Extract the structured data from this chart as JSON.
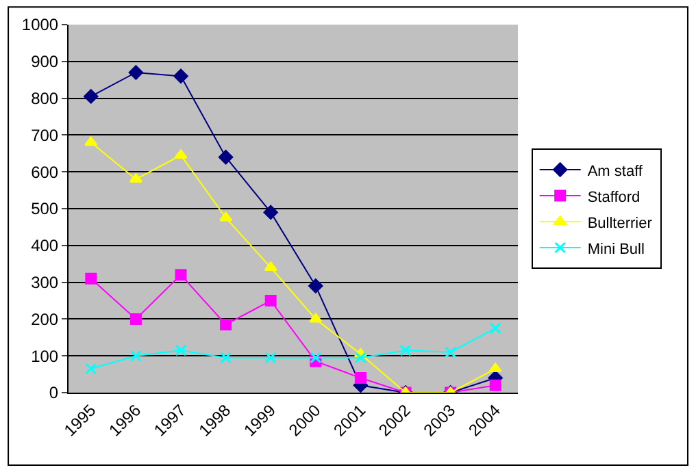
{
  "chart_data": {
    "type": "line",
    "categories": [
      "1995",
      "1996",
      "1997",
      "1998",
      "1999",
      "2000",
      "2001",
      "2002",
      "2003",
      "2004"
    ],
    "series": [
      {
        "name": "Am staff",
        "color": "#000080",
        "marker": "diamond",
        "values": [
          805,
          870,
          860,
          640,
          490,
          290,
          20,
          0,
          0,
          40
        ]
      },
      {
        "name": "Stafford",
        "color": "#ff00ff",
        "marker": "square",
        "values": [
          310,
          200,
          320,
          185,
          250,
          85,
          40,
          0,
          0,
          20
        ]
      },
      {
        "name": "Bullterrier",
        "color": "#ffff00",
        "marker": "triangle",
        "values": [
          680,
          580,
          645,
          475,
          340,
          200,
          105,
          0,
          0,
          65
        ]
      },
      {
        "name": "Mini Bull",
        "color": "#00ffff",
        "marker": "cross",
        "values": [
          65,
          100,
          115,
          95,
          95,
          95,
          95,
          115,
          110,
          175
        ]
      }
    ],
    "ylim": [
      0,
      1000
    ],
    "yticks": [
      0,
      100,
      200,
      300,
      400,
      500,
      600,
      700,
      800,
      900,
      1000
    ],
    "grid": "y",
    "legend": "right",
    "line_style": "solid"
  }
}
